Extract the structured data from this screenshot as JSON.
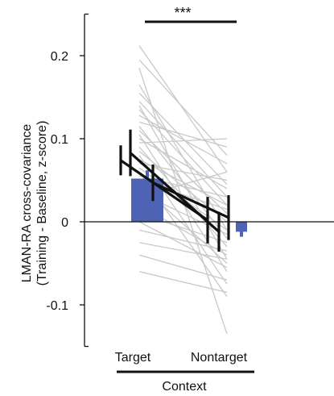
{
  "chart_data": {
    "type": "bar",
    "title": "",
    "xlabel": "Context",
    "ylabel_lines": [
      "LMAN-RA cross-covariance",
      "(Training - Baseline, z-score)"
    ],
    "categories": [
      "Target",
      "Nontarget"
    ],
    "ylim": [
      -0.15,
      0.25
    ],
    "yticks": [
      -0.1,
      0,
      0.1,
      0.2
    ],
    "ytick_labels": [
      "-0.1",
      "0",
      "0.1",
      "0.2"
    ],
    "grid": false,
    "legend": "none",
    "colors": {
      "bar": "#4f63b5",
      "individual": "#c8c8c8",
      "summary": "#111111"
    },
    "bars": {
      "values": [
        0.052,
        -0.012
      ],
      "errors": [
        0.01,
        0.006
      ]
    },
    "summary_lines": [
      {
        "values": [
          0.074,
          0.002
        ],
        "errors": [
          0.018,
          0.028
        ]
      },
      {
        "values": [
          0.083,
          -0.012
        ],
        "errors": [
          0.028,
          0.024
        ]
      },
      {
        "values": [
          0.047,
          0.005
        ],
        "errors": [
          0.022,
          0.027
        ]
      }
    ],
    "individual_pairs": [
      [
        0.212,
        0.06
      ],
      [
        0.195,
        0.08
      ],
      [
        0.185,
        -0.135
      ],
      [
        0.165,
        -0.01
      ],
      [
        0.155,
        0.045
      ],
      [
        0.145,
        0.03
      ],
      [
        0.14,
        -0.045
      ],
      [
        0.135,
        0.02
      ],
      [
        0.128,
        0.07
      ],
      [
        0.12,
        0.09
      ],
      [
        0.115,
        -0.02
      ],
      [
        0.11,
        0.01
      ],
      [
        0.105,
        -0.06
      ],
      [
        0.1,
        0.04
      ],
      [
        0.095,
        0.1
      ],
      [
        0.09,
        -0.03
      ],
      [
        0.085,
        0.0
      ],
      [
        0.08,
        -0.075
      ],
      [
        0.075,
        0.02
      ],
      [
        0.07,
        0.05
      ],
      [
        0.065,
        -0.01
      ],
      [
        0.06,
        -0.09
      ],
      [
        0.055,
        0.03
      ],
      [
        0.05,
        0.015
      ],
      [
        0.045,
        -0.05
      ],
      [
        0.035,
        -0.015
      ],
      [
        0.03,
        0.06
      ],
      [
        0.02,
        -0.04
      ],
      [
        0.01,
        -0.025
      ],
      [
        0.0,
        -0.055
      ],
      [
        -0.01,
        -0.035
      ],
      [
        -0.025,
        -0.045
      ],
      [
        -0.04,
        -0.07
      ],
      [
        -0.06,
        -0.085
      ]
    ],
    "significance": {
      "label": "***",
      "between": [
        "Target",
        "Nontarget"
      ]
    }
  }
}
